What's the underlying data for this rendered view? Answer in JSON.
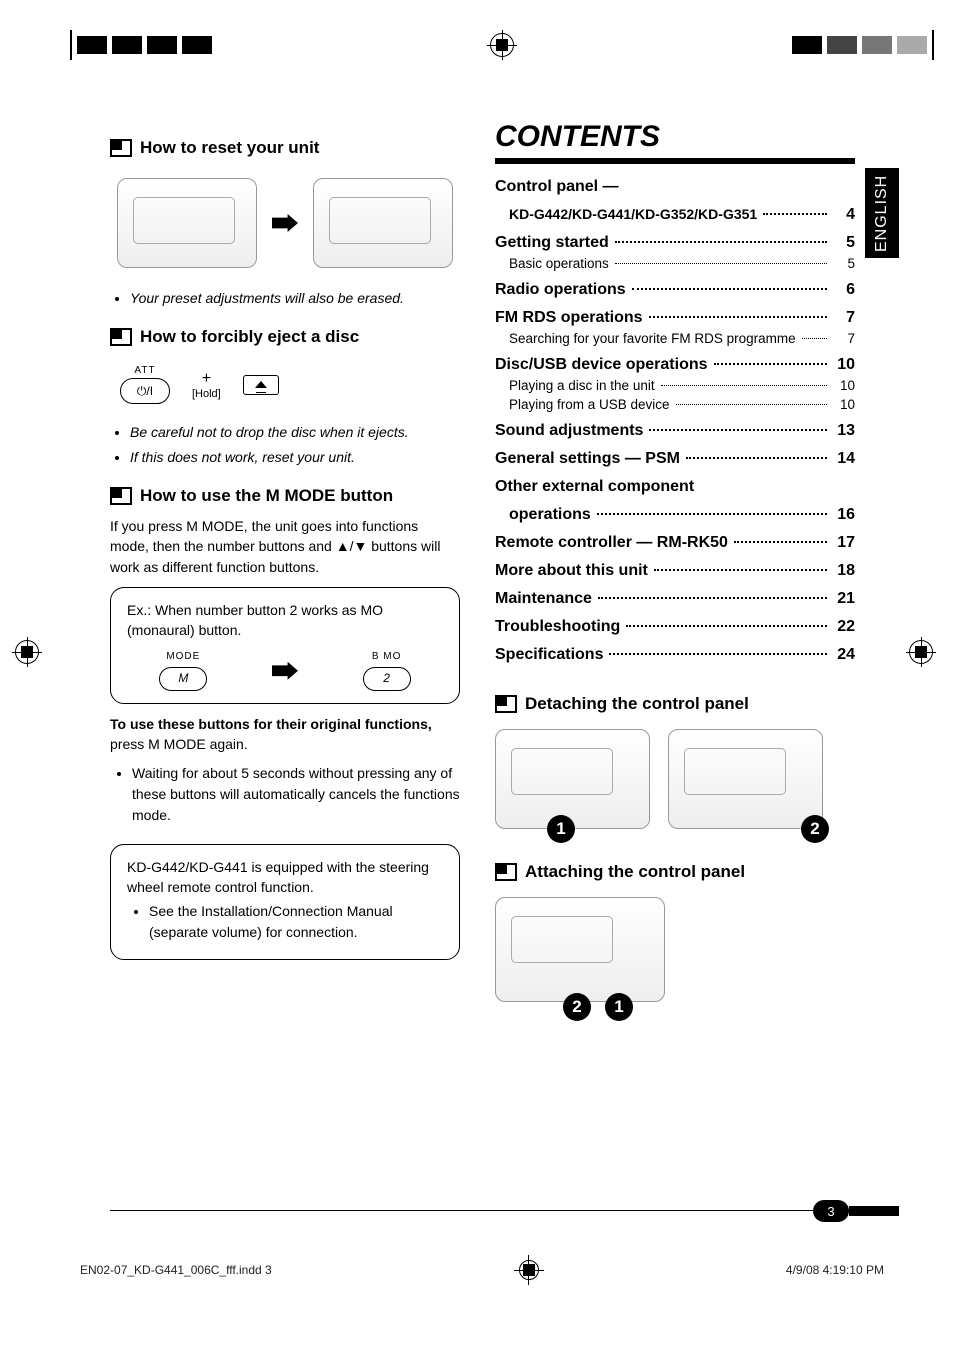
{
  "lang_tab": "ENGLISH",
  "page_number": "3",
  "footer": {
    "file": "EN02-07_KD-G441_006C_fff.indd   3",
    "date": "4/9/08   4:19:10 PM"
  },
  "left": {
    "reset": {
      "title": "How to reset your unit",
      "note": "Your preset adjustments will also be erased."
    },
    "eject": {
      "title": "How to forcibly eject a disc",
      "att_label": "ATT",
      "hold_label": "[Hold]",
      "plus": "+",
      "notes": [
        "Be careful not to drop the disc when it ejects.",
        "If this does not work, reset your unit."
      ]
    },
    "mmode": {
      "title": "How to use the M MODE button",
      "para1": "If you press M MODE, the unit goes into functions mode, then the number buttons and ▲/▼ buttons will work as different function buttons.",
      "box_intro": "Ex.:  When number button 2 works as MO (monaural) button.",
      "btn_mode_top": "MODE",
      "btn_mode": "M",
      "btn_mo_top": "B   MO",
      "btn_mo": "2",
      "after_bold": "To use these buttons for their original functions,",
      "after_tail": "press M MODE again.",
      "after_bullet": "Waiting for about 5 seconds without pressing any of these buttons will automatically cancels the functions mode."
    },
    "steering": {
      "line1": "KD-G442/KD-G441 is equipped with the steering wheel remote control function.",
      "bullet": "See the Installation/Connection Manual (separate volume) for connection."
    }
  },
  "contents": {
    "heading": "CONTENTS",
    "items": [
      {
        "type": "main-noleader",
        "label": "Control panel —"
      },
      {
        "type": "sub-bold",
        "label": "KD-G442/KD-G441/KD-G352/KD-G351",
        "page": "4"
      },
      {
        "type": "main",
        "label": "Getting started",
        "page": "5"
      },
      {
        "type": "sub",
        "label": "Basic operations",
        "page": "5"
      },
      {
        "type": "main",
        "label": "Radio operations",
        "page": "6"
      },
      {
        "type": "main",
        "label": "FM RDS operations",
        "page": "7"
      },
      {
        "type": "sub",
        "label": "Searching for your favorite FM RDS programme",
        "page": "7"
      },
      {
        "type": "main",
        "label": "Disc/USB device operations",
        "page": "10"
      },
      {
        "type": "sub",
        "label": "Playing a disc in the unit",
        "page": "10"
      },
      {
        "type": "sub",
        "label": "Playing from a USB device",
        "page": "10"
      },
      {
        "type": "main",
        "label": "Sound adjustments",
        "page": "13"
      },
      {
        "type": "main",
        "label": "General settings — PSM",
        "page": "14"
      },
      {
        "type": "main-noleader",
        "label": "Other external component"
      },
      {
        "type": "main-indent",
        "label": "operations",
        "page": "16"
      },
      {
        "type": "main",
        "label": "Remote controller — RM-RK50",
        "page": "17"
      },
      {
        "type": "main",
        "label": "More about this unit",
        "page": "18"
      },
      {
        "type": "main",
        "label": "Maintenance",
        "page": "21"
      },
      {
        "type": "main",
        "label": "Troubleshooting",
        "page": "22"
      },
      {
        "type": "main",
        "label": "Specifications",
        "page": "24"
      }
    ]
  },
  "right": {
    "detach_title": "Detaching the control panel",
    "attach_title": "Attaching the control panel"
  },
  "colors": {
    "accent": "#000000",
    "text": "#000000",
    "bg": "#ffffff"
  }
}
